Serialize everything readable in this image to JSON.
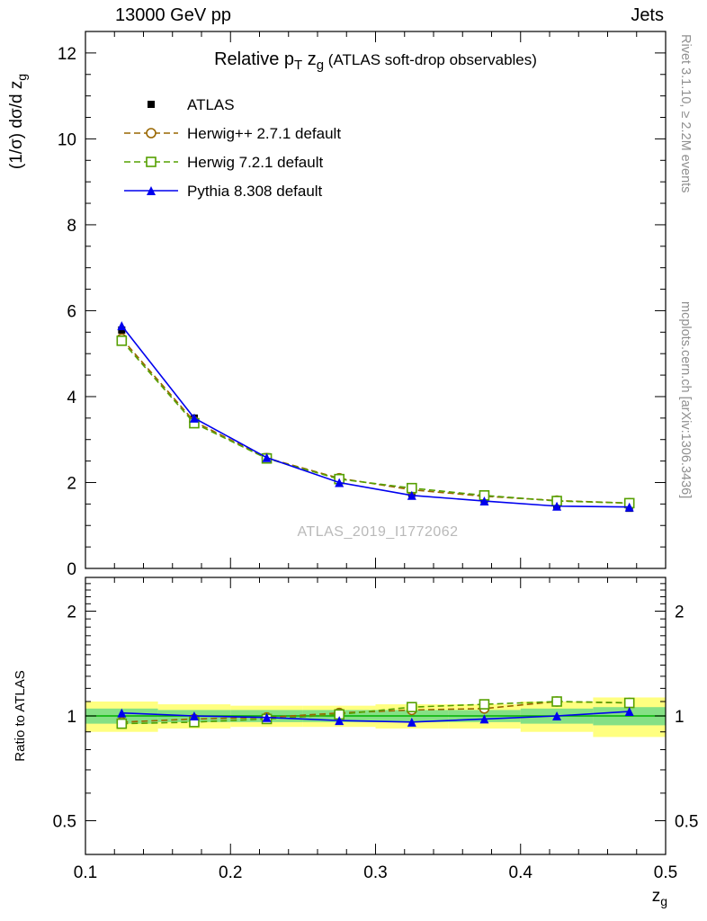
{
  "header": {
    "left": "13000 GeV pp",
    "right": "Jets"
  },
  "side_labels": {
    "rivet": "Rivet 3.1.10, ≥ 2.2M events",
    "mcplots": "mcplots.cern.ch [arXiv:1306.3436]"
  },
  "watermark": "ATLAS_2019_I1772062",
  "chart_data": {
    "type": "line",
    "title": "Relative pT zg (ATLAS soft-drop observables)",
    "title_segments": [
      {
        "t": "Relative p"
      },
      {
        "t": "T",
        "sub": true
      },
      {
        "t": " z"
      },
      {
        "t": "g",
        "sub": true
      },
      {
        "t": " (ATLAS soft-drop observables)",
        "size": 17
      }
    ],
    "ylabel": "(1/σ) dσ/d zg",
    "ylabel_segments": [
      {
        "t": "(1/σ) dσ/d z"
      },
      {
        "t": "g",
        "sub": true
      }
    ],
    "xlabel": "zg",
    "xlabel_segments": [
      {
        "t": "z"
      },
      {
        "t": "g",
        "sub": true
      }
    ],
    "ratio_ylabel": "Ratio to ATLAS",
    "x": [
      0.125,
      0.175,
      0.225,
      0.275,
      0.325,
      0.375,
      0.425,
      0.475
    ],
    "bin_edges": [
      0.1,
      0.15,
      0.2,
      0.25,
      0.3,
      0.35,
      0.4,
      0.45,
      0.5
    ],
    "series": [
      {
        "id": "atlas",
        "name": "ATLAS",
        "color": "#000000",
        "marker": "square-filled",
        "line": "none",
        "values": [
          5.55,
          3.5,
          2.6,
          2.05,
          1.75,
          1.6,
          1.45,
          1.4
        ],
        "errors": [
          0.15,
          0.09,
          0.06,
          0.05,
          0.05,
          0.05,
          0.05,
          0.06
        ]
      },
      {
        "id": "herwigpp",
        "name": "Herwig++ 2.7.1 default",
        "color": "#996600",
        "marker": "circle-open",
        "line": "dashed",
        "values": [
          5.35,
          3.42,
          2.57,
          2.1,
          1.83,
          1.68,
          1.58,
          1.52
        ],
        "ratio": [
          0.96,
          0.98,
          0.99,
          1.02,
          1.04,
          1.05,
          1.1,
          1.09
        ]
      },
      {
        "id": "herwig7",
        "name": "Herwig 7.2.1 default",
        "color": "#55a000",
        "marker": "square-open",
        "line": "dashed",
        "values": [
          5.3,
          3.38,
          2.56,
          2.08,
          1.87,
          1.7,
          1.57,
          1.52
        ],
        "ratio": [
          0.95,
          0.96,
          0.98,
          1.01,
          1.06,
          1.08,
          1.1,
          1.09
        ]
      },
      {
        "id": "pythia",
        "name": "Pythia 8.308 default",
        "color": "#0000ee",
        "marker": "triangle-filled",
        "line": "solid",
        "values": [
          5.65,
          3.5,
          2.58,
          2.0,
          1.7,
          1.57,
          1.45,
          1.43
        ],
        "ratio": [
          1.02,
          1.0,
          0.99,
          0.97,
          0.96,
          0.98,
          1.0,
          1.03
        ]
      }
    ],
    "axes": {
      "x": {
        "min": 0.1,
        "max": 0.5,
        "major_ticks": [
          0.1,
          0.2,
          0.3,
          0.4,
          0.5
        ],
        "tick_labels": [
          "0.1",
          "0.2",
          "0.3",
          "0.4",
          "0.5"
        ],
        "minor_step": 0.02
      },
      "y_main": {
        "scale": "linear",
        "min": 0,
        "max": 12.5,
        "major_ticks": [
          0,
          2,
          4,
          6,
          8,
          10,
          12
        ],
        "tick_labels": [
          "0",
          "2",
          "4",
          "6",
          "8",
          "10",
          "12"
        ],
        "minor_step": 0.5
      },
      "y_ratio": {
        "scale": "log",
        "min": 0.4,
        "max": 2.5,
        "major_ticks": [
          2,
          1,
          0.5
        ],
        "tick_labels": [
          "2",
          "1",
          "0.5"
        ],
        "minor_ticks": [
          0.4,
          0.6,
          0.7,
          0.8,
          0.9,
          1.1,
          1.2,
          1.3,
          1.4,
          1.5,
          1.6,
          1.7,
          1.8,
          1.9,
          2.1,
          2.2,
          2.3,
          2.4
        ]
      }
    },
    "bands": {
      "yellow_color": "#ffff80",
      "green_color": "#85e085",
      "line_color": "#00b000",
      "yellow_lo": [
        0.9,
        0.92,
        0.93,
        0.93,
        0.92,
        0.92,
        0.9,
        0.87
      ],
      "yellow_hi": [
        1.1,
        1.08,
        1.07,
        1.07,
        1.08,
        1.08,
        1.1,
        1.13
      ],
      "green_lo": [
        0.95,
        0.96,
        0.96,
        0.96,
        0.96,
        0.96,
        0.95,
        0.94
      ],
      "green_hi": [
        1.05,
        1.04,
        1.04,
        1.04,
        1.04,
        1.04,
        1.05,
        1.06
      ]
    },
    "legend_position": "top-left-inside",
    "grid": false
  }
}
